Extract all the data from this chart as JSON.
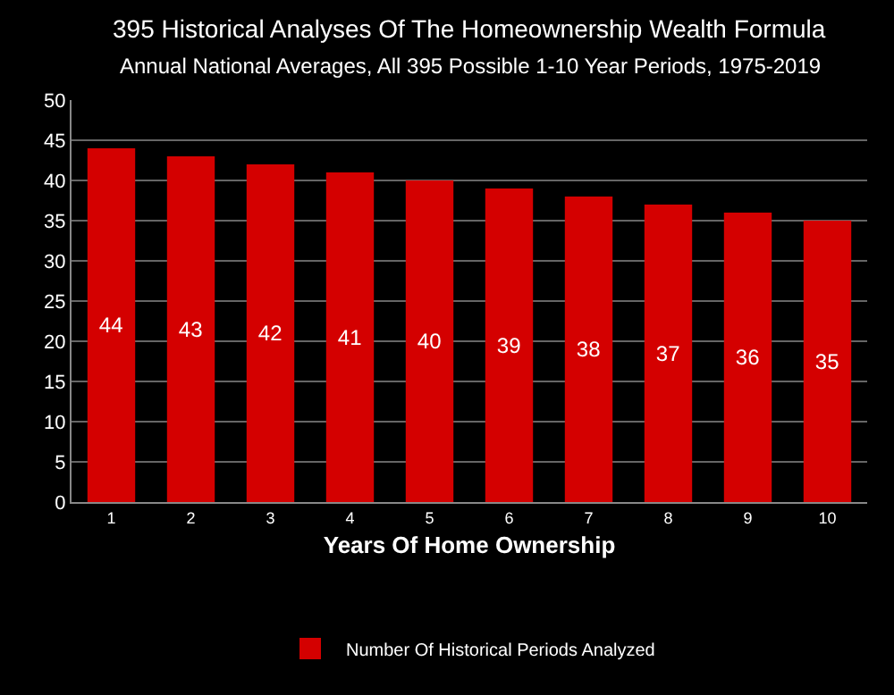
{
  "chart_data": {
    "type": "bar",
    "title": "395 Historical Analyses Of The Homeownership Wealth Formula",
    "subtitle": "Annual National Averages, All 395 Possible 1-10 Year Periods, 1975-2019",
    "xlabel": "Years Of Home Ownership",
    "categories": [
      "1",
      "2",
      "3",
      "4",
      "5",
      "6",
      "7",
      "8",
      "9",
      "10"
    ],
    "series": [
      {
        "name": "Number Of Historical Periods Analyzed",
        "color": "#d40000",
        "values": [
          44,
          43,
          42,
          41,
          40,
          39,
          38,
          37,
          36,
          35
        ]
      }
    ],
    "ylim": [
      0,
      50
    ],
    "yticks": [
      0,
      5,
      10,
      15,
      20,
      25,
      30,
      35,
      40,
      45,
      50
    ],
    "grid": "y",
    "legend": "bottom",
    "data_labels": true
  }
}
